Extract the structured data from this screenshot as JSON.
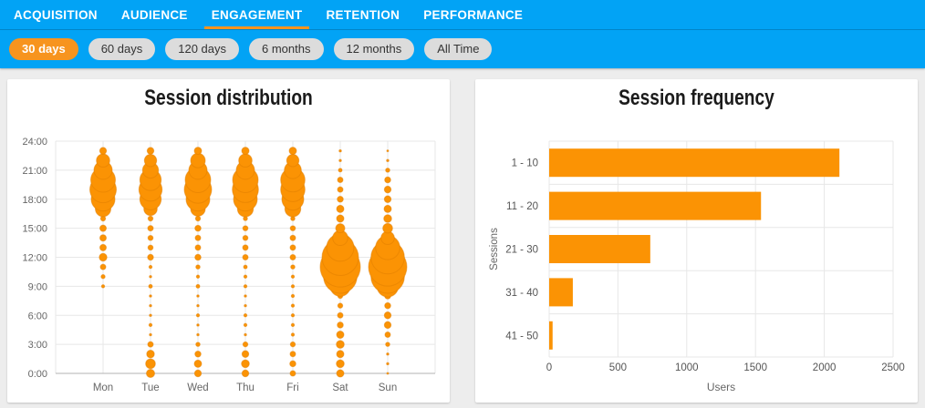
{
  "header": {
    "tabs": [
      {
        "label": "ACQUISITION",
        "active": false
      },
      {
        "label": "AUDIENCE",
        "active": false
      },
      {
        "label": "ENGAGEMENT",
        "active": true
      },
      {
        "label": "RETENTION",
        "active": false
      },
      {
        "label": "PERFORMANCE",
        "active": false
      }
    ],
    "filters": [
      {
        "label": "30 days",
        "active": true
      },
      {
        "label": "60 days",
        "active": false
      },
      {
        "label": "120 days",
        "active": false
      },
      {
        "label": "6 months",
        "active": false
      },
      {
        "label": "12 months",
        "active": false
      },
      {
        "label": "All Time",
        "active": false
      }
    ]
  },
  "colors": {
    "header_blue": "#02A3F5",
    "accent_orange": "#F7941E",
    "chart_orange": "#FB9304",
    "bubble_stroke": "#DF7E00",
    "inactive_pill": "#DCDCDC",
    "grid_line": "#E7E7E7",
    "axis_line": "#B3B3B3",
    "tick_text": "#666666"
  },
  "chart_data": [
    {
      "type": "scatter",
      "variant": "bubble-punchcard",
      "title": "Session distribution",
      "x_categories": [
        "Mon",
        "Tue",
        "Wed",
        "Thu",
        "Fri",
        "Sat",
        "Sun"
      ],
      "y_ticks": [
        "0:00",
        "3:00",
        "6:00",
        "9:00",
        "12:00",
        "15:00",
        "18:00",
        "21:00",
        "24:00"
      ],
      "y_range_hours": [
        0,
        24
      ],
      "grid": true,
      "legend": false,
      "note": "bubble size = relative session volume per hour (radius px, index 0 = hour 0:00)",
      "series": [
        {
          "name": "Mon",
          "radii": [
            0,
            0,
            0,
            0,
            0,
            0,
            0,
            0,
            0,
            1.7,
            2.2,
            3,
            4.2,
            3.5,
            3.5,
            3.5,
            2.7,
            8.5,
            13,
            14.5,
            13.5,
            10,
            7.3,
            3.7
          ]
        },
        {
          "name": "Tue",
          "radii": [
            4.5,
            5.3,
            4.2,
            3,
            1.3,
            1.7,
            1.3,
            1.3,
            1.3,
            2,
            1.3,
            1.7,
            3.2,
            2.8,
            2.8,
            3,
            2.7,
            7.3,
            11.7,
            12.7,
            11.7,
            8.7,
            6.7,
            3.7
          ]
        },
        {
          "name": "Wed",
          "radii": [
            3.7,
            4,
            3.3,
            2.3,
            1.3,
            1.3,
            1.7,
            1.3,
            1.3,
            2,
            1.7,
            2.3,
            3.3,
            3,
            3,
            3.3,
            2.7,
            8,
            13,
            15,
            14,
            10,
            8,
            4
          ]
        },
        {
          "name": "Thu",
          "radii": [
            3.7,
            4.3,
            3.7,
            2.7,
            1.3,
            1.7,
            1.7,
            1.3,
            1.3,
            1.7,
            1.7,
            2,
            3,
            3,
            2.8,
            2.8,
            2.3,
            8.7,
            13,
            14.3,
            14,
            10,
            7.3,
            4
          ]
        },
        {
          "name": "Fri",
          "radii": [
            3,
            3.3,
            3,
            2.7,
            1.7,
            1.7,
            1.7,
            1.7,
            1.7,
            1.7,
            1.7,
            2.3,
            3,
            3,
            3,
            2.8,
            2.3,
            8.7,
            12,
            13.3,
            13.3,
            9.3,
            6.7,
            4
          ]
        },
        {
          "name": "Sat",
          "radii": [
            4,
            4.3,
            4,
            4.3,
            4,
            3.3,
            3,
            2.7,
            2.7,
            11,
            18.3,
            22,
            20,
            15,
            8.3,
            5,
            4,
            4,
            3.3,
            3,
            3,
            2,
            1.3,
            1.3
          ]
        },
        {
          "name": "Sun",
          "radii": [
            1,
            1.3,
            1.3,
            2.3,
            3,
            3.7,
            3.7,
            3.3,
            3.3,
            11.7,
            18.3,
            21,
            18.3,
            13.3,
            7.3,
            5.3,
            4.3,
            4,
            3.7,
            3.7,
            3.3,
            2.3,
            1.3,
            1
          ]
        }
      ]
    },
    {
      "type": "bar",
      "orientation": "horizontal",
      "title": "Session frequency",
      "categories": [
        "1 - 10",
        "11 - 20",
        "21 - 30",
        "31 - 40",
        "41 - 50"
      ],
      "values": [
        2110,
        1540,
        735,
        172,
        25
      ],
      "xlabel": "Users",
      "ylabel": "Sessions",
      "xlim": [
        0,
        2500
      ],
      "xticks": [
        0,
        500,
        1000,
        1500,
        2000,
        2500
      ],
      "grid": true,
      "legend": false
    }
  ]
}
